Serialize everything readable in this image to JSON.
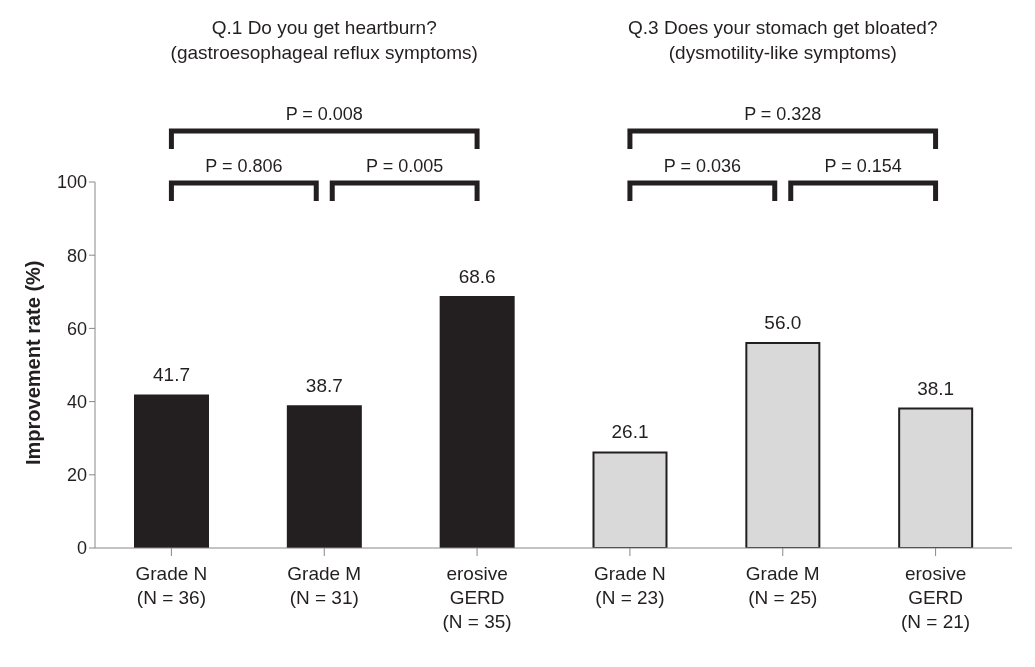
{
  "chart_data": {
    "type": "bar",
    "ylabel": "Improvement rate (%)",
    "categories": [
      "Grade N\n(N = 36)",
      "Grade M\n(N = 31)",
      "erosive\nGERD\n(N = 35)",
      "Grade N\n(N = 23)",
      "Grade M\n(N = 25)",
      "erosive\nGERD\n(N = 21)"
    ],
    "values": [
      41.7,
      38.7,
      68.6,
      26.1,
      56.0,
      38.1
    ],
    "value_labels": [
      "41.7",
      "38.7",
      "68.6",
      "26.1",
      "56.0",
      "38.1"
    ],
    "colors": [
      "#231f20",
      "#231f20",
      "#231f20",
      "#d9d9d9",
      "#d9d9d9",
      "#d9d9d9"
    ],
    "ylim": [
      0,
      100
    ],
    "yticks": [
      0,
      20,
      40,
      60,
      80,
      100
    ],
    "grid": false,
    "legend": false,
    "annotations": [
      "Q.1 Do you get heartburn?\n(gastroesophageal reflux symptoms)",
      "Q.3 Does your stomach get bloated?\n(dysmotility-like symptoms)",
      "P = 0.008",
      "P = 0.806",
      "P = 0.005",
      "P = 0.328",
      "P = 0.036",
      "P = 0.154"
    ]
  }
}
